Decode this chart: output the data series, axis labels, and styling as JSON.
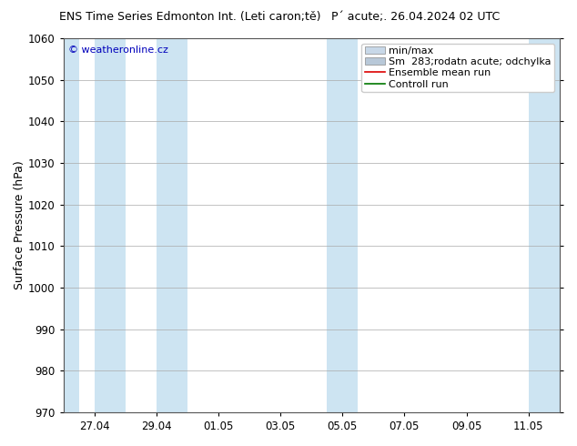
{
  "title_left": "ENS Time Series Edmonton Int. (Leti caron;tě)",
  "title_right": "P´ acute;. 26.04.2024 02 UTC",
  "ylabel": "Surface Pressure (hPa)",
  "ylim": [
    970,
    1060
  ],
  "yticks": [
    970,
    980,
    990,
    1000,
    1010,
    1020,
    1030,
    1040,
    1050,
    1060
  ],
  "x_tick_labels": [
    "27.04",
    "29.04",
    "01.05",
    "03.05",
    "05.05",
    "07.05",
    "09.05",
    "11.05"
  ],
  "x_tick_positions": [
    1,
    3,
    5,
    7,
    9,
    11,
    13,
    15
  ],
  "xlim": [
    0,
    16
  ],
  "blue_bands": [
    {
      "x_start": 0,
      "x_end": 0.5
    },
    {
      "x_start": 1,
      "x_end": 2
    },
    {
      "x_start": 3,
      "x_end": 4
    },
    {
      "x_start": 8.5,
      "x_end": 9.5
    },
    {
      "x_start": 15,
      "x_end": 16
    }
  ],
  "shade_color": "#cde4f2",
  "bg_color": "#ffffff",
  "plot_bg_color": "#ffffff",
  "watermark": "© weatheronline.cz",
  "watermark_color": "#0000bb",
  "title_fontsize": 9,
  "tick_fontsize": 8.5,
  "ylabel_fontsize": 9,
  "legend_fontsize": 8
}
